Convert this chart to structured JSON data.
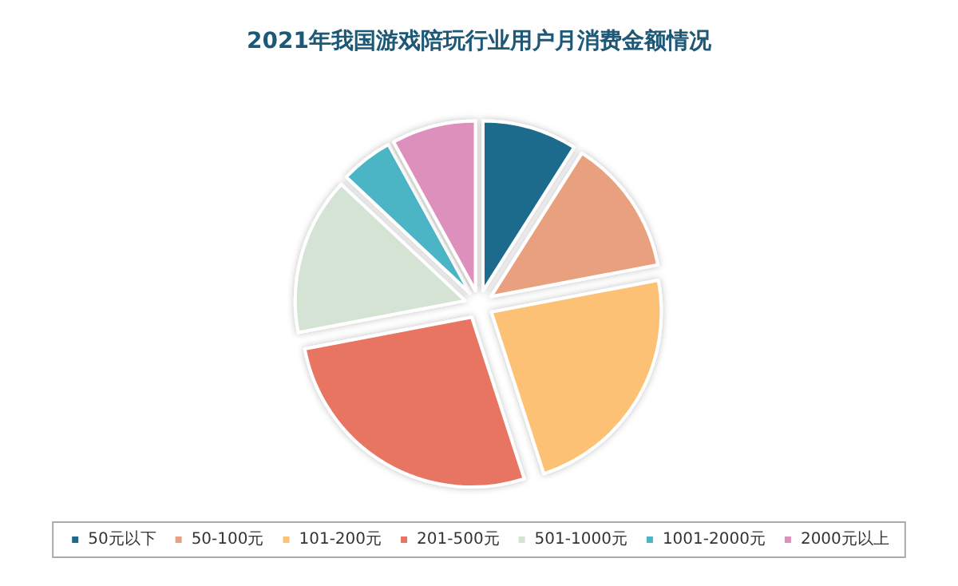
{
  "chart_data": {
    "type": "pie",
    "title": "2021年我国游戏陪玩行业用户月消费金额情况",
    "categories": [
      "50元以下",
      "50-100元",
      "101-200元",
      "201-500元",
      "501-1000元",
      "1001-2000元",
      "2000元以上"
    ],
    "values": [
      9,
      13,
      23,
      27,
      15,
      5,
      8
    ],
    "colors": [
      "#1b6a8c",
      "#e9a07e",
      "#fdc174",
      "#e87462",
      "#d4e3d4",
      "#4bb5c5",
      "#dd90bc"
    ],
    "legend": "bottom"
  }
}
